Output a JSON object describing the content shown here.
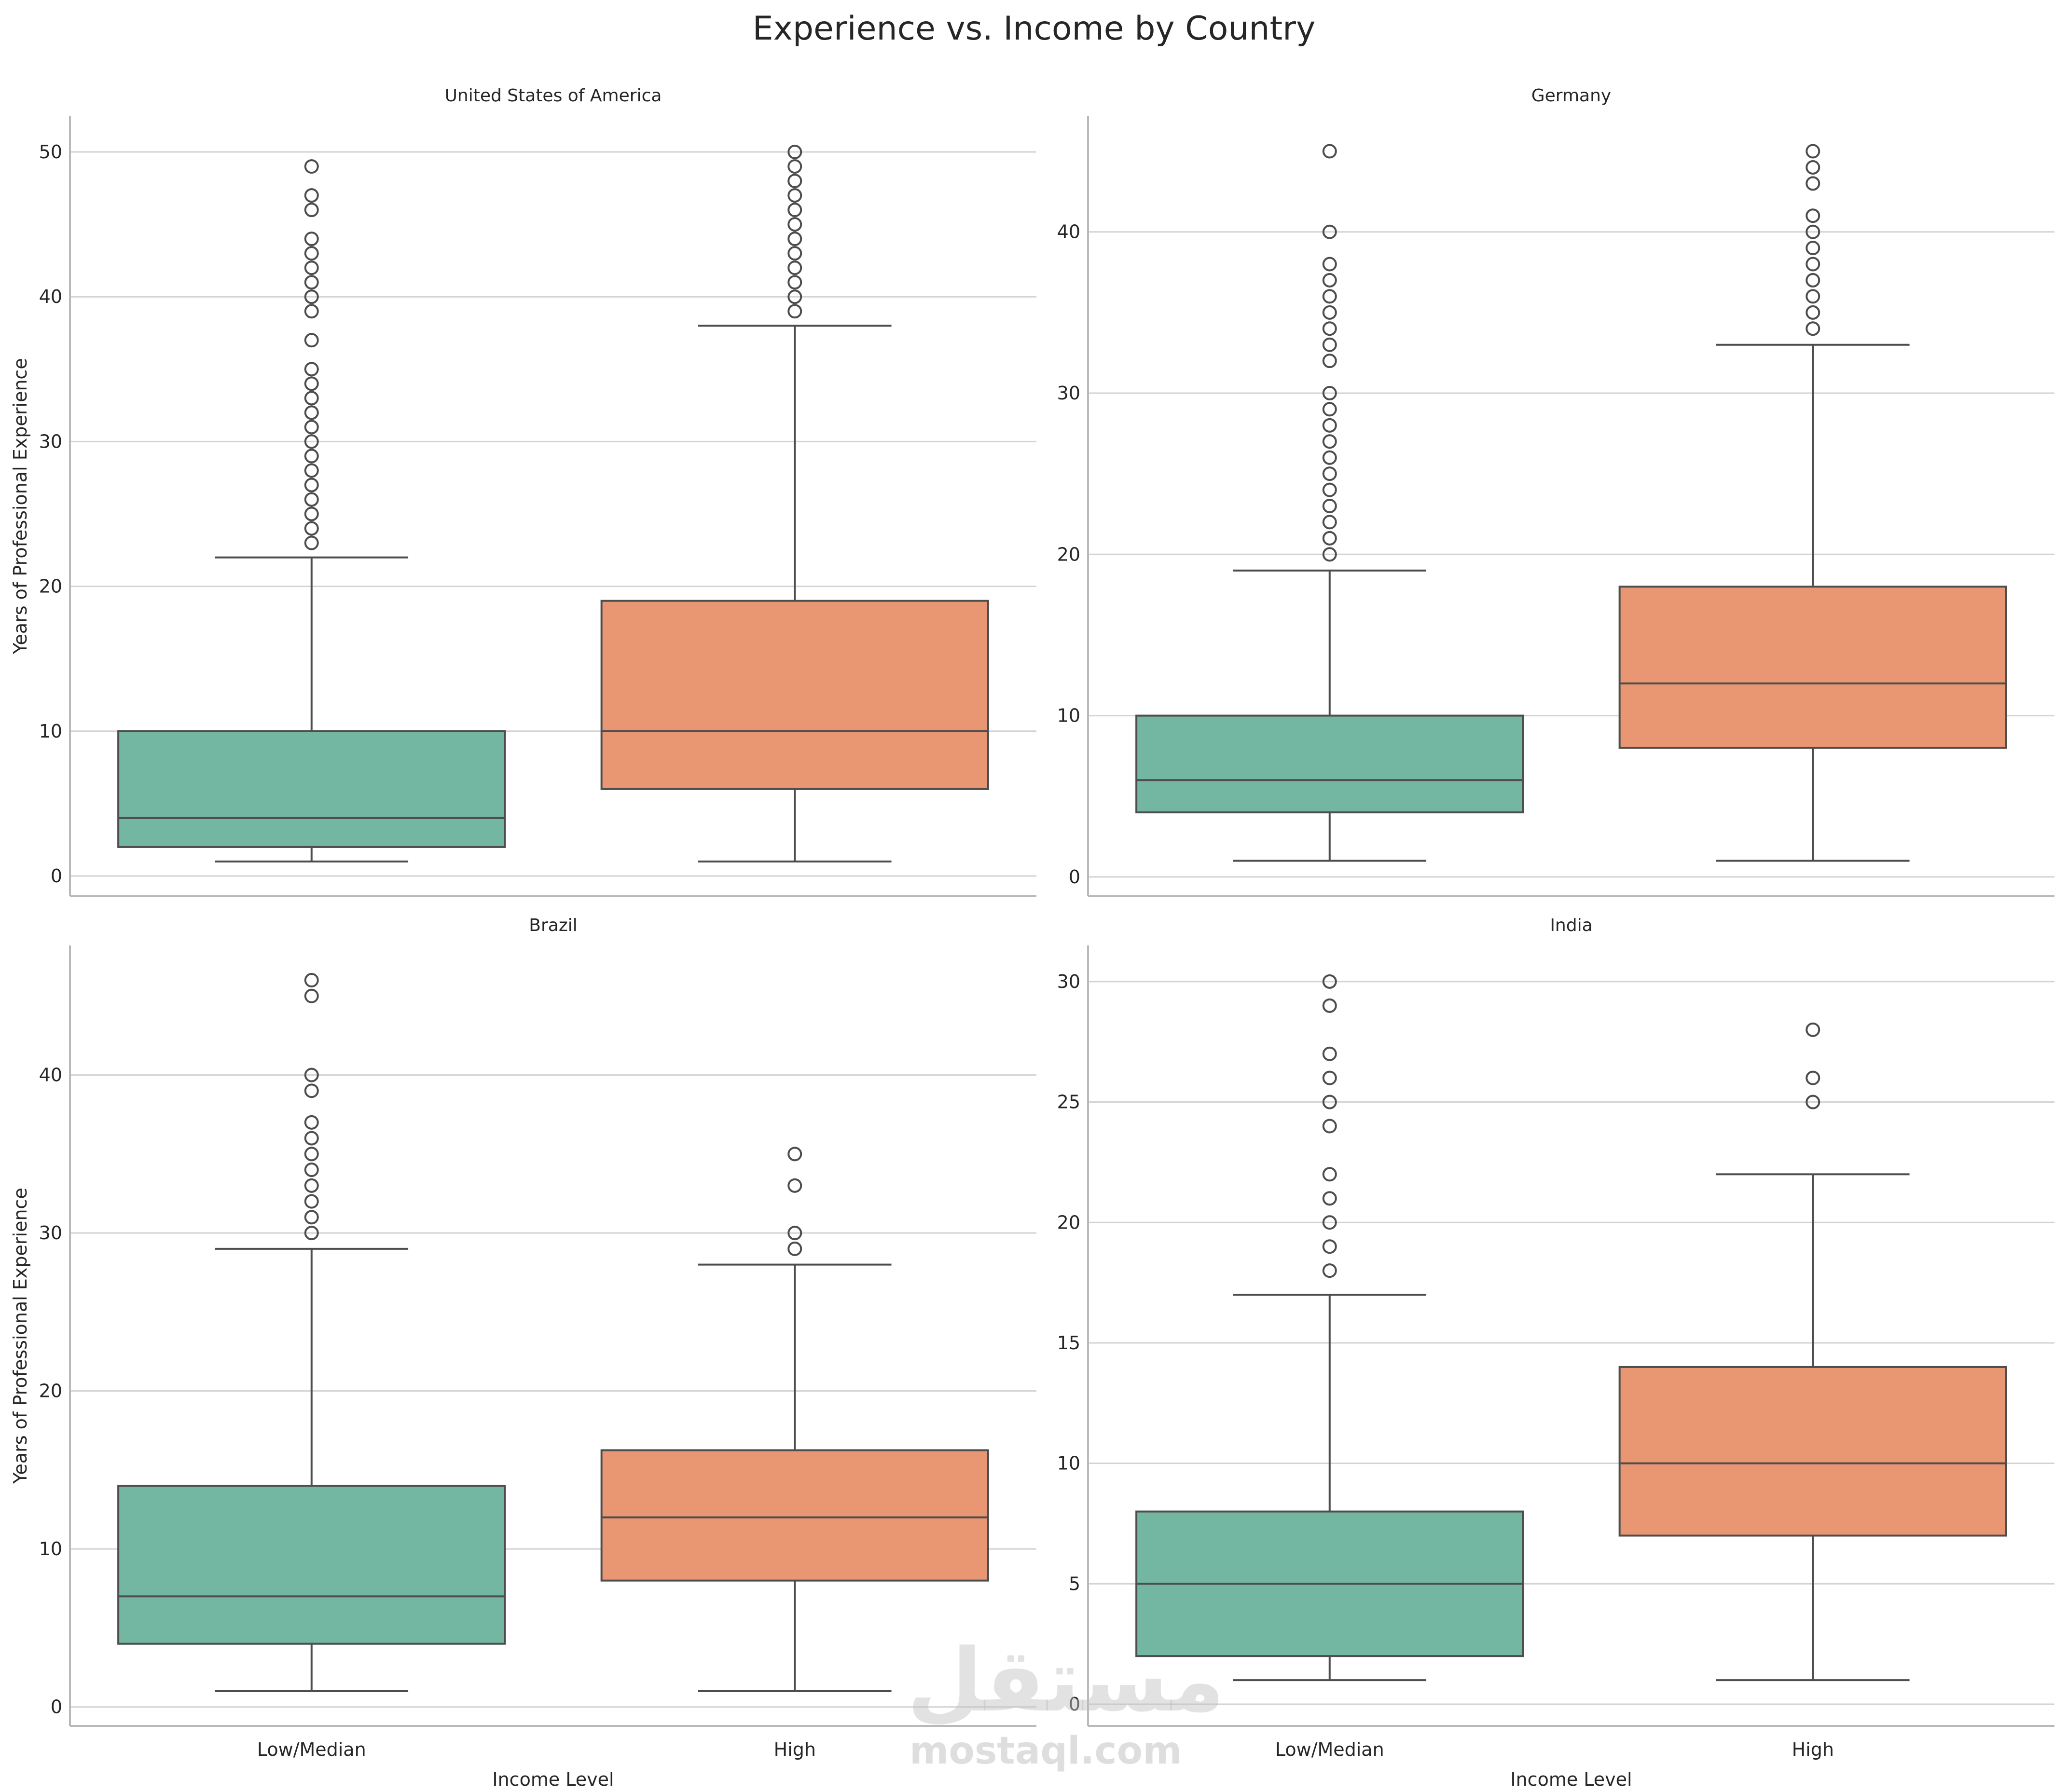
{
  "chart_data": {
    "type": "box",
    "title": "Experience vs. Income by Country",
    "categories": [
      "Low/Median",
      "High"
    ],
    "xlabel": "Income Level",
    "ylabel": "Years of Professional Experience",
    "grid": "horizontal",
    "colors": {
      "Low/Median": "#73b6a1",
      "High": "#e99673",
      "line": "#4d4d4d",
      "grid": "#d3d3d3",
      "axis": "#b9b9b9"
    },
    "panels": [
      {
        "title": "United States of America",
        "ylim": [
          -1.4,
          52.5
        ],
        "yticks": [
          0,
          10,
          20,
          30,
          40,
          50
        ],
        "boxes": [
          {
            "category": "Low/Median",
            "whislo": 1,
            "q1": 2,
            "median": 4,
            "q3": 10,
            "whishi": 22,
            "outliers": [
              23,
              24,
              25,
              26,
              27,
              28,
              29,
              30,
              31,
              32,
              33,
              34,
              35,
              37,
              39,
              40,
              41,
              42,
              43,
              44,
              46,
              47,
              49
            ]
          },
          {
            "category": "High",
            "whislo": 1,
            "q1": 6,
            "median": 10,
            "q3": 19,
            "whishi": 38,
            "outliers": [
              39,
              40,
              41,
              42,
              43,
              44,
              45,
              46,
              47,
              48,
              49,
              50
            ]
          }
        ]
      },
      {
        "title": "Germany",
        "ylim": [
          -1.2,
          47.2
        ],
        "yticks": [
          0,
          10,
          20,
          30,
          40
        ],
        "boxes": [
          {
            "category": "Low/Median",
            "whislo": 1,
            "q1": 4,
            "median": 6,
            "q3": 10,
            "whishi": 19,
            "outliers": [
              20,
              21,
              22,
              23,
              24,
              25,
              26,
              27,
              28,
              29,
              30,
              32,
              33,
              34,
              35,
              36,
              37,
              38,
              40,
              45
            ]
          },
          {
            "category": "High",
            "whislo": 1,
            "q1": 8,
            "median": 12,
            "q3": 18,
            "whishi": 33,
            "outliers": [
              34,
              35,
              36,
              37,
              38,
              39,
              40,
              41,
              43,
              44,
              45
            ]
          }
        ]
      },
      {
        "title": "Brazil",
        "ylim": [
          -1.2,
          48.2
        ],
        "yticks": [
          0,
          10,
          20,
          30,
          40
        ],
        "boxes": [
          {
            "category": "Low/Median",
            "whislo": 1,
            "q1": 4,
            "median": 7,
            "q3": 14,
            "whishi": 29,
            "outliers": [
              30,
              31,
              32,
              33,
              34,
              35,
              36,
              37,
              39,
              40,
              45,
              46
            ]
          },
          {
            "category": "High",
            "whislo": 1,
            "q1": 8,
            "median": 12,
            "q3": 16.25,
            "whishi": 28,
            "outliers": [
              29,
              30,
              33,
              35
            ]
          }
        ]
      },
      {
        "title": "India",
        "ylim": [
          -0.9,
          31.5
        ],
        "yticks": [
          0,
          5,
          10,
          15,
          20,
          25,
          30
        ],
        "boxes": [
          {
            "category": "Low/Median",
            "whislo": 1,
            "q1": 2,
            "median": 5,
            "q3": 8,
            "whishi": 17,
            "outliers": [
              18,
              19,
              20,
              21,
              22,
              24,
              25,
              26,
              27,
              29,
              30
            ]
          },
          {
            "category": "High",
            "whislo": 1,
            "q1": 7,
            "median": 10,
            "q3": 14,
            "whishi": 22,
            "outliers": [
              25,
              26,
              28
            ]
          }
        ]
      }
    ]
  },
  "watermark": {
    "logo": "مستقل",
    "text": "mostaql.com"
  }
}
